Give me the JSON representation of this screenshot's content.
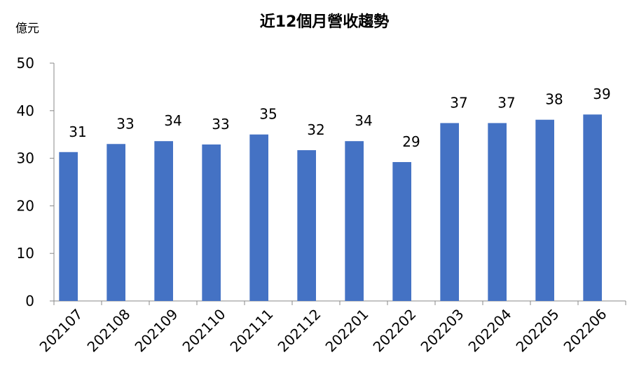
{
  "chart_data": {
    "type": "bar",
    "title": "近12個月營收趨勢",
    "ylabel": "億元",
    "categories": [
      "202107",
      "202108",
      "202109",
      "202110",
      "202111",
      "202112",
      "202201",
      "202202",
      "202203",
      "202204",
      "202205",
      "202206"
    ],
    "values": [
      31.3,
      33.0,
      33.6,
      32.9,
      35.0,
      31.7,
      33.6,
      29.2,
      37.4,
      37.4,
      38.1,
      39.2
    ],
    "value_labels": [
      "31",
      "33",
      "34",
      "33",
      "35",
      "32",
      "34",
      "29",
      "37",
      "37",
      "38",
      "39"
    ],
    "color": "#4472c4",
    "ylim": [
      0,
      50
    ],
    "yticks": [
      0,
      10,
      20,
      30,
      40,
      50
    ],
    "grid": false
  }
}
